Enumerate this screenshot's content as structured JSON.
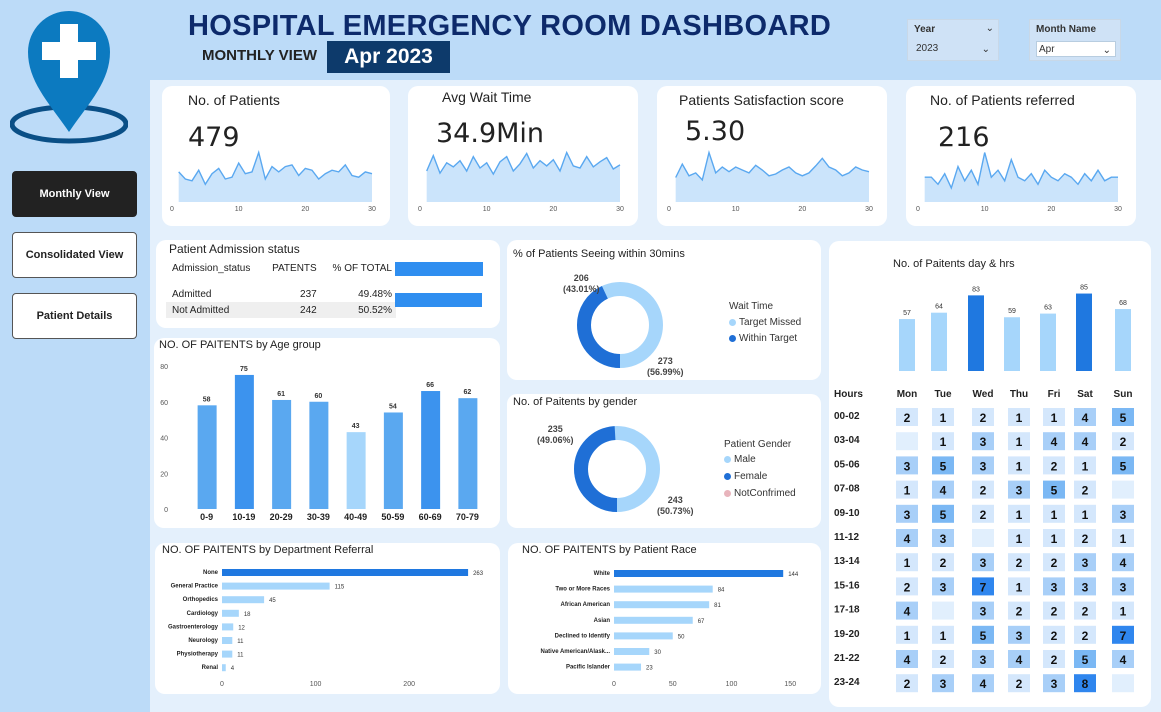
{
  "header": {
    "title": "HOSPITAL EMERGENCY ROOM  DASHBOARD",
    "subtitle": "MONTHLY VIEW",
    "month_badge": "Apr 2023"
  },
  "slicers": {
    "year": {
      "label": "Year",
      "value": "2023"
    },
    "month": {
      "label": "Month Name",
      "value": "Apr"
    }
  },
  "nav": {
    "monthly": "Monthly View",
    "consolidated": "Consolidated View",
    "patient_details": "Patient Details"
  },
  "colors": {
    "primary": "#1f78e0",
    "light": "#a6d6fb",
    "mid": "#5aa8f0",
    "dark_navy": "#0d2a6b"
  },
  "kpis": [
    {
      "label": "No. of Patients",
      "value": "479"
    },
    {
      "label": "Avg Wait Time",
      "value": "34.9Min"
    },
    {
      "label": "Patients Satisfaction score",
      "value": "5.30"
    },
    {
      "label": "No. of Patients referred",
      "value": "216"
    }
  ],
  "admission": {
    "title": "Patient Admission status",
    "headers": [
      "Admission_status",
      "PATENTS",
      "% OF TOTAL"
    ],
    "rows": [
      {
        "status": "Admitted",
        "patients": "237",
        "pct": "49.48%"
      },
      {
        "status": "Not Admitted",
        "patients": "242",
        "pct": "50.52%"
      }
    ]
  },
  "wait_donut": {
    "title": "% of Patients Seeing within 30mins",
    "legend_title": "Wait Time",
    "legend": [
      "Target Missed",
      "Within Target"
    ],
    "label_missed": "273",
    "label_missed_pct": "(56.99%)",
    "label_within": "206",
    "label_within_pct": "(43.01%)"
  },
  "gender_donut": {
    "title": "No. of Paitents by gender",
    "legend_title": "Patient Gender",
    "legend": [
      "Male",
      "Female",
      "NotConfrimed"
    ],
    "label_male": "243",
    "label_male_pct": "(50.73%)",
    "label_female": "235",
    "label_female_pct": "(49.06%)"
  },
  "day_chart_title": "No. of Paitents day & hrs",
  "age_chart_title": "NO. OF PAITENTS by Age group",
  "dept_chart_title": "NO. OF PAITENTS by Department Referral",
  "race_chart_title": "NO. OF PAITENTS by Patient Race",
  "heatmap": {
    "corner": "Hours",
    "days": [
      "Mon",
      "Tue",
      "Wed",
      "Thu",
      "Fri",
      "Sat",
      "Sun"
    ],
    "hours": [
      "00-02",
      "03-04",
      "05-06",
      "07-08",
      "09-10",
      "11-12",
      "13-14",
      "15-16",
      "17-18",
      "19-20",
      "21-22",
      "23-24"
    ],
    "values": [
      [
        2,
        1,
        2,
        1,
        1,
        4,
        5
      ],
      [
        null,
        1,
        3,
        1,
        4,
        4,
        2
      ],
      [
        3,
        5,
        3,
        1,
        2,
        1,
        5
      ],
      [
        1,
        4,
        2,
        3,
        5,
        2,
        null
      ],
      [
        3,
        5,
        2,
        1,
        1,
        1,
        3
      ],
      [
        4,
        3,
        null,
        1,
        1,
        2,
        1
      ],
      [
        1,
        2,
        3,
        2,
        2,
        3,
        4
      ],
      [
        2,
        3,
        7,
        1,
        3,
        3,
        3
      ],
      [
        4,
        null,
        3,
        2,
        2,
        2,
        1
      ],
      [
        1,
        1,
        5,
        3,
        2,
        2,
        7
      ],
      [
        4,
        2,
        3,
        4,
        2,
        5,
        4
      ],
      [
        2,
        3,
        4,
        2,
        3,
        8,
        null
      ]
    ]
  },
  "chart_data": [
    {
      "type": "area",
      "x": [
        1,
        2,
        3,
        4,
        5,
        6,
        7,
        8,
        9,
        10,
        11,
        12,
        13,
        14,
        15,
        16,
        17,
        18,
        19,
        20,
        21,
        22,
        23,
        24,
        25,
        26,
        27,
        28,
        29,
        30
      ],
      "values": [
        17,
        13,
        12,
        18,
        10,
        16,
        19,
        13,
        14,
        22,
        16,
        17,
        28,
        13,
        20,
        17,
        20,
        21,
        15,
        19,
        18,
        13,
        16,
        18,
        17,
        21,
        15,
        14,
        17,
        16
      ],
      "xticks": [
        0,
        10,
        20,
        30
      ]
    },
    {
      "type": "area",
      "x": [
        1,
        2,
        3,
        4,
        5,
        6,
        7,
        8,
        9,
        10,
        11,
        12,
        13,
        14,
        15,
        16,
        17,
        18,
        19,
        20,
        21,
        22,
        23,
        24,
        25,
        26,
        27,
        28,
        29,
        30
      ],
      "values": [
        30,
        45,
        28,
        38,
        34,
        40,
        30,
        44,
        33,
        38,
        27,
        39,
        44,
        30,
        37,
        47,
        33,
        40,
        35,
        41,
        30,
        48,
        35,
        33,
        44,
        34,
        39,
        43,
        32,
        36
      ],
      "xticks": [
        0,
        10,
        20,
        30
      ]
    },
    {
      "type": "area",
      "x": [
        1,
        2,
        3,
        4,
        5,
        6,
        7,
        8,
        9,
        10,
        11,
        12,
        13,
        14,
        15,
        16,
        17,
        18,
        19,
        20,
        21,
        22,
        23,
        24,
        25,
        26,
        27,
        28,
        29,
        30
      ],
      "values": [
        4.2,
        6.5,
        4.5,
        5,
        3.8,
        8.5,
        5,
        6,
        5.2,
        6,
        5.5,
        5,
        6.3,
        5.5,
        4.5,
        4.8,
        5.5,
        6,
        5,
        4.5,
        5,
        6.2,
        7.5,
        6,
        5.5,
        4.5,
        5,
        6,
        5.5,
        5.2
      ],
      "xticks": [
        0,
        10,
        20,
        30
      ]
    },
    {
      "type": "area",
      "x": [
        1,
        2,
        3,
        4,
        5,
        6,
        7,
        8,
        9,
        10,
        11,
        12,
        13,
        14,
        15,
        16,
        17,
        18,
        19,
        20,
        21,
        22,
        23,
        24,
        25,
        26,
        27,
        28,
        29,
        30
      ],
      "values": [
        7,
        7,
        5,
        8,
        4,
        10,
        6,
        9,
        5,
        14,
        7,
        9,
        6,
        12,
        7,
        6,
        8,
        5,
        9,
        7,
        6,
        8,
        7,
        5,
        8,
        6,
        9,
        6,
        7,
        7
      ],
      "xticks": [
        0,
        10,
        20,
        30
      ]
    },
    {
      "type": "bar",
      "title": "No. of Paitents day & hrs",
      "categories": [
        "Mon",
        "Tue",
        "Wed",
        "Thu",
        "Fri",
        "Sat",
        "Sun"
      ],
      "values": [
        57,
        64,
        83,
        59,
        63,
        85,
        68
      ]
    },
    {
      "type": "bar",
      "title": "NO. OF PAITENTS by Age group",
      "categories": [
        "0-9",
        "10-19",
        "20-29",
        "30-39",
        "40-49",
        "50-59",
        "60-69",
        "70-79"
      ],
      "values": [
        58,
        75,
        61,
        60,
        43,
        54,
        66,
        62
      ],
      "ylim": [
        0,
        80
      ],
      "yticks": [
        0,
        20,
        40,
        60,
        80
      ]
    },
    {
      "type": "bar",
      "orientation": "horizontal",
      "title": "NO. OF PAITENTS by Department Referral",
      "categories": [
        "None",
        "General Practice",
        "Orthopedics",
        "Cardiology",
        "Gastroenterology",
        "Neurology",
        "Physiotherapy",
        "Renal"
      ],
      "values": [
        263,
        115,
        45,
        18,
        12,
        11,
        11,
        4
      ],
      "xticks": [
        0,
        100,
        200
      ],
      "xlim": [
        0,
        280
      ]
    },
    {
      "type": "bar",
      "orientation": "horizontal",
      "title": "NO. OF PAITENTS by Patient Race",
      "categories": [
        "White",
        "Two or More Races",
        "African American",
        "Asian",
        "Declined to Identify",
        "Native American/Alask...",
        "Pacific Islander"
      ],
      "values": [
        144,
        84,
        81,
        67,
        50,
        30,
        23
      ],
      "xticks": [
        0,
        50,
        100,
        150
      ],
      "xlim": [
        0,
        160
      ]
    }
  ]
}
